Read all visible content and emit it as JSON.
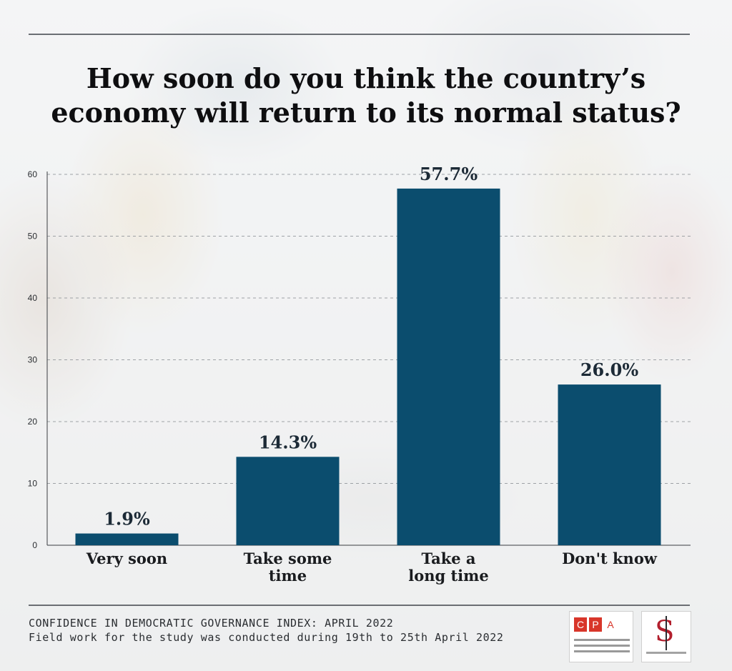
{
  "title_line1": "How soon do you think the country’s",
  "title_line2": "economy will return to its normal status?",
  "chart_data": {
    "type": "bar",
    "categories": [
      [
        "Very soon"
      ],
      [
        "Take some",
        "time"
      ],
      [
        "Take a",
        "long time"
      ],
      [
        "Don't know"
      ]
    ],
    "values": [
      1.9,
      14.3,
      57.7,
      26.0
    ],
    "value_labels": [
      "1.9%",
      "14.3%",
      "57.7%",
      "26.0%"
    ],
    "y_ticks": [
      0,
      10,
      20,
      30,
      40,
      50,
      60
    ],
    "ylim": [
      0,
      60
    ],
    "grid": true,
    "bar_color": "#0b4d6e"
  },
  "footer": {
    "line1": "CONFIDENCE IN DEMOCRATIC GOVERNANCE INDEX: APRIL 2022",
    "line2": "Field work for the study was conducted during 19th to 25th April 2022"
  },
  "logos": {
    "cpa_letters": [
      "C",
      "P",
      "A"
    ],
    "ssr_letter": "S"
  }
}
